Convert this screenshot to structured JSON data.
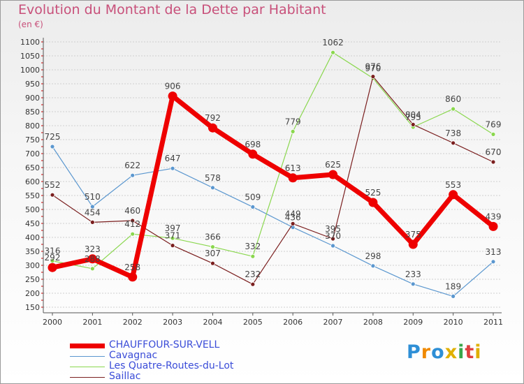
{
  "chart_data": {
    "type": "line",
    "title": "Evolution du Montant de la Dette par Habitant",
    "unit_label": "(en €)",
    "categories": [
      "2000",
      "2001",
      "2002",
      "2003",
      "2004",
      "2005",
      "2006",
      "2007",
      "2008",
      "2009",
      "2010",
      "2011"
    ],
    "ylim": [
      150,
      1100
    ],
    "yticks": [
      150,
      200,
      250,
      300,
      350,
      400,
      450,
      500,
      550,
      600,
      650,
      700,
      750,
      800,
      850,
      900,
      950,
      1000,
      1050,
      1100
    ],
    "grid": "horizontal dashed",
    "legend_position": "bottom-left",
    "series": [
      {
        "name": "CHAUFFOUR-SUR-VELL",
        "color": "#ee0000",
        "values": [
          292,
          323,
          258,
          906,
          792,
          698,
          613,
          625,
          525,
          375,
          553,
          439
        ]
      },
      {
        "name": "Cavagnac",
        "color": "#5b97cf",
        "values": [
          725,
          510,
          622,
          647,
          578,
          509,
          436,
          370,
          298,
          233,
          189,
          313
        ]
      },
      {
        "name": "Les Quatre-Routes-du-Lot",
        "color": "#8ad74e",
        "values": [
          316,
          288,
          412,
          397,
          366,
          332,
          779,
          1062,
          970,
          795,
          860,
          769
        ]
      },
      {
        "name": "Saillac",
        "color": "#7a1e1e",
        "values": [
          552,
          454,
          460,
          371,
          307,
          232,
          449,
          395,
          976,
          804,
          738,
          670
        ]
      }
    ]
  },
  "logo": {
    "text": "Proxiti",
    "letters": [
      "P",
      "r",
      "o",
      "x",
      "i",
      "t",
      "i"
    ],
    "colors": [
      "#2e8fd6",
      "#f08a00",
      "#2e8fd6",
      "#e0b000",
      "#3aa64a",
      "#e04040",
      "#e0b000"
    ]
  }
}
